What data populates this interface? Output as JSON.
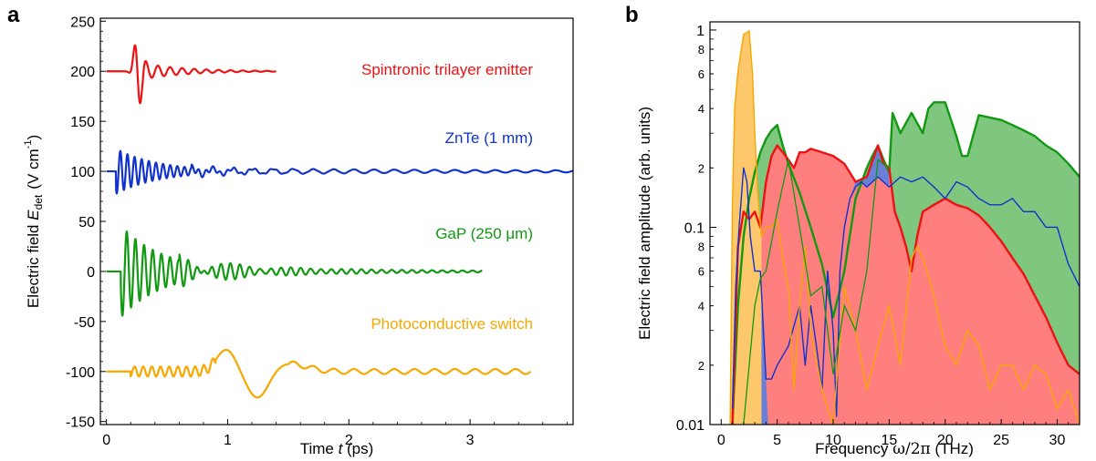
{
  "panels": {
    "a": "a",
    "b": "b"
  },
  "chart_data": [
    {
      "type": "line",
      "xlabel_text": "Time ",
      "xlabel_var": "t",
      "xlabel_unit": " (ps)",
      "ylabel_text": "Electric field ",
      "ylabel_var": "E",
      "ylabel_sub": "det",
      "ylabel_unit_pre": "(V cm",
      "ylabel_unit_sup": "-1",
      "ylabel_unit_post": ")",
      "xlim": [
        -0.05,
        3.85
      ],
      "ylim": [
        -153,
        253
      ],
      "xticks": [
        0,
        1,
        2,
        3
      ],
      "yticks": [
        250,
        200,
        150,
        100,
        50,
        0,
        -50,
        -100,
        -150
      ],
      "colors": {
        "spintronic": "#ee1111",
        "znte": "#1133cc",
        "gap": "#119911",
        "photo": "#f5a800"
      },
      "series": [
        {
          "key": "spintronic",
          "name": "Spintronic trilayer emitter",
          "offset": 200,
          "t_end": 1.4
        },
        {
          "key": "znte",
          "name": "ZnTe (1 mm)",
          "offset": 100,
          "t_end": 3.85
        },
        {
          "key": "gap",
          "name": "GaP (250 μm)",
          "offset": 0,
          "t_end": 3.1
        },
        {
          "key": "photo",
          "name": "Photoconductive switch",
          "offset": -100,
          "t_end": 3.5
        }
      ]
    },
    {
      "type": "area",
      "xlabel_text": "Frequency ",
      "xlabel_var": "ω/2π",
      "xlabel_unit": "  (THz)",
      "ylabel": "Electric field amplitude  (arb. units)",
      "yscale": "log",
      "xlim": [
        -1,
        32
      ],
      "ylim": [
        0.01,
        1.1
      ],
      "xticks": [
        0,
        5,
        10,
        15,
        20,
        25,
        30
      ],
      "ytick_labels": [
        {
          "v": 1,
          "t": "1"
        },
        {
          "v": 0.8,
          "t": "8"
        },
        {
          "v": 0.6,
          "t": "6"
        },
        {
          "v": 0.4,
          "t": "4"
        },
        {
          "v": 0.2,
          "t": "2"
        },
        {
          "v": 0.1,
          "t": "0.1"
        },
        {
          "v": 0.08,
          "t": "8"
        },
        {
          "v": 0.06,
          "t": "6"
        },
        {
          "v": 0.04,
          "t": "4"
        },
        {
          "v": 0.02,
          "t": "2"
        },
        {
          "v": 0.01,
          "t": "0.01"
        }
      ],
      "series": [
        {
          "key": "gap",
          "fill": "#7fc77f",
          "stroke": "#119911",
          "x": [
            1.0,
            1.5,
            2.0,
            2.5,
            3.0,
            3.5,
            4.0,
            4.5,
            5.0,
            5.5,
            6.0,
            7.0,
            8.0,
            9.0,
            10.0,
            11.0,
            12.0,
            13.0,
            13.5,
            14.0,
            14.5,
            15.0,
            15.3,
            16.0,
            17.0,
            18.0,
            18.5,
            19.0,
            20.0,
            21.0,
            21.5,
            22.0,
            23.0,
            24.0,
            25.0,
            26.0,
            27.0,
            28.0,
            29.0,
            30.0,
            31.0,
            32.0
          ],
          "y": [
            0.01,
            0.04,
            0.09,
            0.14,
            0.19,
            0.24,
            0.28,
            0.31,
            0.33,
            0.26,
            0.21,
            0.15,
            0.1,
            0.065,
            0.035,
            0.06,
            0.14,
            0.2,
            0.23,
            0.26,
            0.22,
            0.19,
            0.38,
            0.3,
            0.38,
            0.3,
            0.4,
            0.43,
            0.43,
            0.29,
            0.23,
            0.23,
            0.37,
            0.36,
            0.35,
            0.33,
            0.31,
            0.29,
            0.26,
            0.24,
            0.21,
            0.18
          ]
        },
        {
          "key": "red",
          "fill": "#ff7f7f",
          "stroke": "#ee1111",
          "x": [
            1.0,
            1.5,
            2.0,
            2.5,
            3.0,
            3.5,
            4.0,
            4.5,
            5.0,
            5.5,
            6.0,
            6.5,
            7.0,
            7.5,
            8.0,
            9.0,
            10.0,
            11.0,
            12.0,
            13.0,
            14.0,
            14.5,
            15.0,
            15.5,
            16.0,
            16.5,
            17.0,
            17.5,
            18.0,
            19.0,
            20.0,
            21.0,
            22.0,
            23.0,
            24.0,
            25.0,
            26.0,
            27.0,
            28.0,
            29.0,
            30.0,
            31.0,
            31.5,
            32.0
          ],
          "y": [
            0.01,
            0.08,
            0.12,
            0.11,
            0.12,
            0.1,
            0.17,
            0.23,
            0.26,
            0.24,
            0.22,
            0.2,
            0.24,
            0.24,
            0.25,
            0.24,
            0.23,
            0.21,
            0.17,
            0.18,
            0.26,
            0.21,
            0.2,
            0.12,
            0.1,
            0.08,
            0.06,
            0.09,
            0.12,
            0.13,
            0.14,
            0.13,
            0.125,
            0.115,
            0.1,
            0.085,
            0.07,
            0.058,
            0.045,
            0.035,
            0.026,
            0.02,
            0.019,
            0.018
          ]
        },
        {
          "key": "blue",
          "fill": "#6a7fd6",
          "stroke": "#1133cc",
          "x": [
            1.0,
            1.3,
            1.6,
            2.0,
            2.3,
            2.6,
            3.0,
            3.5,
            4.0,
            4.5,
            5.0,
            6.0,
            7.0,
            7.5,
            8.0,
            8.5,
            9.0,
            9.5,
            10.0,
            10.3,
            10.6,
            11.0,
            11.5,
            12.0,
            12.5,
            13.0,
            14.0,
            15.0,
            16.0,
            17.0,
            18.0,
            19.0,
            20.0,
            21.0,
            22.0,
            23.0,
            24.0,
            25.0,
            26.0,
            27.0,
            28.0,
            29.0,
            30.0,
            31.0,
            32.0
          ],
          "y": [
            0.012,
            0.05,
            0.1,
            0.2,
            0.17,
            0.09,
            0.06,
            0.06,
            0.017,
            0.017,
            0.02,
            0.025,
            0.04,
            0.02,
            0.04,
            0.025,
            0.015,
            0.06,
            0.03,
            0.011,
            0.06,
            0.1,
            0.14,
            0.16,
            0.17,
            0.16,
            0.18,
            0.16,
            0.18,
            0.17,
            0.18,
            0.16,
            0.14,
            0.17,
            0.16,
            0.14,
            0.13,
            0.13,
            0.14,
            0.12,
            0.12,
            0.1,
            0.1,
            0.065,
            0.05
          ]
        },
        {
          "key": "orange",
          "fill": "#fdc76c",
          "stroke": "#f5a800",
          "x": [
            0.8,
            1.0,
            1.2,
            1.5,
            2.0,
            2.5,
            2.8,
            3.0,
            3.3,
            3.6,
            4.0,
            4.5,
            5.0,
            5.5,
            6.0,
            6.5,
            7.0,
            7.5,
            8.0,
            9.0,
            10.0,
            11.0,
            12.0,
            13.0,
            14.0,
            15.0,
            16.0,
            17.0,
            17.5,
            18.0,
            19.0,
            20.0,
            21.0,
            22.0,
            23.0,
            24.0,
            25.0,
            26.0,
            27.0,
            28.0,
            29.0,
            30.0,
            31.0,
            32.0
          ],
          "y": [
            0.01,
            0.13,
            0.4,
            0.62,
            0.95,
            0.99,
            0.6,
            0.3,
            0.14,
            0.09,
            0.1,
            0.1,
            0.11,
            0.07,
            0.05,
            0.015,
            0.04,
            0.08,
            0.03,
            0.015,
            0.01,
            0.05,
            0.03,
            0.015,
            0.025,
            0.04,
            0.02,
            0.07,
            0.08,
            0.07,
            0.045,
            0.025,
            0.02,
            0.03,
            0.025,
            0.015,
            0.02,
            0.02,
            0.015,
            0.02,
            0.018,
            0.012,
            0.015,
            0.01
          ]
        }
      ]
    }
  ]
}
